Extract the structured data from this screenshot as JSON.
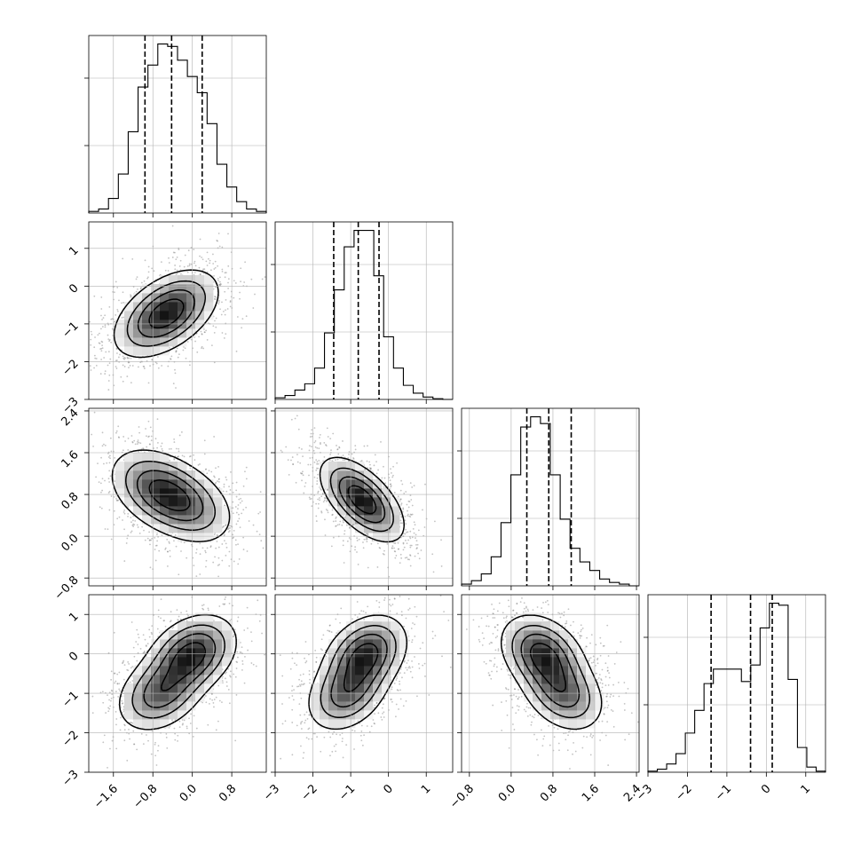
{
  "chart_data": {
    "type": "corner",
    "title": "",
    "parameters": 4,
    "axis_ranges": [
      [
        -2.1,
        1.5
      ],
      [
        -3.0,
        1.7
      ],
      [
        -0.95,
        2.45
      ],
      [
        -3.0,
        1.5
      ]
    ],
    "x_ticks": [
      [
        "-1.6",
        "-0.8",
        "0.0",
        "0.8"
      ],
      [
        "-3",
        "-2",
        "-1",
        "0",
        "1"
      ],
      [
        "-0.8",
        "0.0",
        "0.8",
        "1.6",
        "2.4"
      ],
      [
        "-3",
        "-2",
        "-1",
        "0",
        "1"
      ]
    ],
    "y_ticks": {
      "row1": [
        "1",
        "0",
        "-1",
        "-2",
        "-3"
      ],
      "row2": [
        "2.4",
        "1.6",
        "0.8",
        "0.0",
        "-0.8"
      ],
      "row3": [
        "1",
        "0",
        "-1",
        "-2",
        "-3"
      ]
    },
    "grid": true,
    "histograms": [
      {
        "param": 0,
        "quantiles": [
          -0.96,
          -0.42,
          0.2
        ],
        "counts": [
          2,
          5,
          18,
          48,
          100,
          155,
          182,
          208,
          205,
          188,
          168,
          148,
          110,
          60,
          32,
          14,
          5,
          2
        ]
      },
      {
        "param": 1,
        "quantiles": [
          -1.45,
          -0.8,
          -0.25
        ],
        "counts": [
          2,
          5,
          12,
          20,
          40,
          85,
          140,
          195,
          216,
          216,
          158,
          80,
          40,
          18,
          8,
          3,
          1,
          0
        ]
      },
      {
        "param": 2,
        "quantiles": [
          0.3,
          0.72,
          1.15
        ],
        "counts": [
          2,
          6,
          14,
          34,
          74,
          130,
          186,
          198,
          190,
          130,
          78,
          44,
          28,
          18,
          8,
          4,
          2,
          0
        ]
      },
      {
        "param": 3,
        "quantiles": [
          -1.4,
          -0.4,
          0.15
        ],
        "counts": [
          1,
          3,
          8,
          18,
          38,
          60,
          86,
          100,
          100,
          100,
          88,
          104,
          140,
          164,
          162,
          90,
          24,
          5,
          1
        ]
      }
    ],
    "joint_distributions": [
      {
        "x_param": 0,
        "y_param": 1,
        "modes": [
          [
            -0.4,
            -0.6
          ],
          [
            -0.7,
            -0.9
          ]
        ],
        "correlation": 0.45,
        "spread": [
          0.5,
          0.55
        ]
      },
      {
        "x_param": 0,
        "y_param": 2,
        "modes": [
          [
            -0.7,
            0.9
          ],
          [
            -0.1,
            0.6
          ]
        ],
        "correlation": -0.35,
        "spread": [
          0.5,
          0.4
        ]
      },
      {
        "x_param": 1,
        "y_param": 2,
        "modes": [
          [
            -0.7,
            0.7
          ]
        ],
        "correlation": -0.6,
        "spread": [
          0.55,
          0.4
        ]
      },
      {
        "x_param": 0,
        "y_param": 3,
        "modes": [
          [
            0.0,
            0.0
          ],
          [
            -0.65,
            -1.0
          ]
        ],
        "correlation": 0.3,
        "spread": [
          0.45,
          0.5
        ]
      },
      {
        "x_param": 1,
        "y_param": 3,
        "modes": [
          [
            -0.6,
            0.0
          ],
          [
            -1.1,
            -1.0
          ]
        ],
        "correlation": 0.3,
        "spread": [
          0.55,
          0.5
        ]
      },
      {
        "x_param": 2,
        "y_param": 3,
        "modes": [
          [
            0.6,
            0.0
          ],
          [
            1.0,
            -1.0
          ]
        ],
        "correlation": -0.3,
        "spread": [
          0.4,
          0.5
        ]
      }
    ]
  }
}
